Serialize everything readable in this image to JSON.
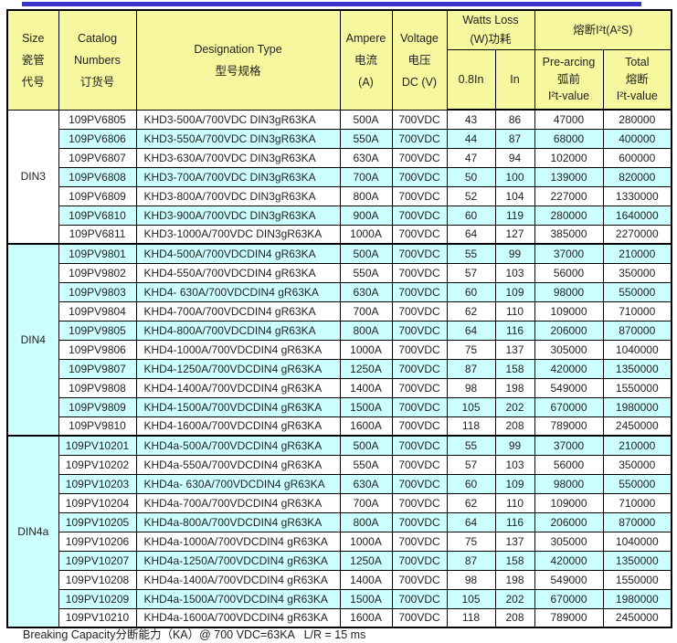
{
  "page": {
    "footer_note": "Breaking Capacity分断能力（KA）@ 700 VDC=63KA   L/R = 15 ms"
  },
  "colors": {
    "top_rule": "#3a35c8",
    "header_bg": "#f7f7a0",
    "stripe_bg": "#ccffff",
    "row_bg": "#ffffff",
    "border": "#000000",
    "text": "#1f1f1f"
  },
  "table": {
    "header": {
      "size": "Size\n瓷管\n代号",
      "catalog": "Catalog\nNumbers\n订货号",
      "designation": "Designation Type\n型号规格",
      "ampere": "Ampere\n电流\n(A)",
      "voltage": "Voltage\n电压\nDC (V)",
      "watts_loss": "Watts Loss\n(W)功耗",
      "i2t": "熔断I²t(A²S)",
      "watts_08in": "0.8In",
      "watts_in": "In",
      "prearcing": "Pre-arcing\n弧前\nI²t-value",
      "total": "Total\n熔断\nI²t-value"
    },
    "groups": [
      {
        "size": "DIN3",
        "rows": [
          {
            "catalog": "109PV6805",
            "designation": "KHD3-500A/700VDC DIN3gR63KA",
            "ampere": "500A",
            "voltage": "700VDC",
            "watts_08in": "43",
            "watts_in": "86",
            "prearcing": "47000",
            "total": "280000"
          },
          {
            "catalog": "109PV6806",
            "designation": "KHD3-550A/700VDC DIN3gR63KA",
            "ampere": "550A",
            "voltage": "700VDC",
            "watts_08in": "44",
            "watts_in": "87",
            "prearcing": "68000",
            "total": "400000"
          },
          {
            "catalog": "109PV6807",
            "designation": "KHD3-630A/700VDC DIN3gR63KA",
            "ampere": "630A",
            "voltage": "700VDC",
            "watts_08in": "47",
            "watts_in": "94",
            "prearcing": "102000",
            "total": "600000"
          },
          {
            "catalog": "109PV6808",
            "designation": "KHD3-700A/700VDC DIN3gR63KA",
            "ampere": "700A",
            "voltage": "700VDC",
            "watts_08in": "50",
            "watts_in": "100",
            "prearcing": "139000",
            "total": "820000"
          },
          {
            "catalog": "109PV6809",
            "designation": "KHD3-800A/700VDC DIN3gR63KA",
            "ampere": "800A",
            "voltage": "700VDC",
            "watts_08in": "52",
            "watts_in": "104",
            "prearcing": "227000",
            "total": "1330000"
          },
          {
            "catalog": "109PV6810",
            "designation": "KHD3-900A/700VDC DIN3gR63KA",
            "ampere": "900A",
            "voltage": "700VDC",
            "watts_08in": "60",
            "watts_in": "119",
            "prearcing": "280000",
            "total": "1640000"
          },
          {
            "catalog": "109PV6811",
            "designation": "KHD3-1000A/700VDC DIN3gR63KA",
            "ampere": "1000A",
            "voltage": "700VDC",
            "watts_08in": "64",
            "watts_in": "127",
            "prearcing": "385000",
            "total": "2270000"
          }
        ]
      },
      {
        "size": "DIN4",
        "rows": [
          {
            "catalog": "109PV9801",
            "designation": "KHD4-500A/700VDCDIN4 gR63KA",
            "ampere": "500A",
            "voltage": "700VDC",
            "watts_08in": "55",
            "watts_in": "99",
            "prearcing": "37000",
            "total": "210000"
          },
          {
            "catalog": "109PV9802",
            "designation": "KHD4-550A/700VDCDIN4 gR63KA",
            "ampere": "550A",
            "voltage": "700VDC",
            "watts_08in": "57",
            "watts_in": "103",
            "prearcing": "56000",
            "total": "350000"
          },
          {
            "catalog": "109PV9803",
            "designation": "KHD4- 630A/700VDCDIN4 gR63KA",
            "ampere": "630A",
            "voltage": "700VDC",
            "watts_08in": "60",
            "watts_in": "109",
            "prearcing": "98000",
            "total": "550000"
          },
          {
            "catalog": "109PV9804",
            "designation": "KHD4-700A/700VDCDIN4 gR63KA",
            "ampere": "700A",
            "voltage": "700VDC",
            "watts_08in": "62",
            "watts_in": "110",
            "prearcing": "109000",
            "total": "710000"
          },
          {
            "catalog": "109PV9805",
            "designation": "KHD4-800A/700VDCDIN4 gR63KA",
            "ampere": "800A",
            "voltage": "700VDC",
            "watts_08in": "64",
            "watts_in": "116",
            "prearcing": "206000",
            "total": "870000"
          },
          {
            "catalog": "109PV9806",
            "designation": "KHD4-1000A/700VDCDIN4 gR63KA",
            "ampere": "1000A",
            "voltage": "700VDC",
            "watts_08in": "75",
            "watts_in": "137",
            "prearcing": "305000",
            "total": "1040000"
          },
          {
            "catalog": "109PV9807",
            "designation": "KHD4-1250A/700VDCDIN4 gR63KA",
            "ampere": "1250A",
            "voltage": "700VDC",
            "watts_08in": "87",
            "watts_in": "158",
            "prearcing": "420000",
            "total": "1350000"
          },
          {
            "catalog": "109PV9808",
            "designation": "KHD4-1400A/700VDCDIN4 gR63KA",
            "ampere": "1400A",
            "voltage": "700VDC",
            "watts_08in": "98",
            "watts_in": "198",
            "prearcing": "549000",
            "total": "1550000"
          },
          {
            "catalog": "109PV9809",
            "designation": "KHD4-1500A/700VDCDIN4 gR63KA",
            "ampere": "1500A",
            "voltage": "700VDC",
            "watts_08in": "105",
            "watts_in": "202",
            "prearcing": "670000",
            "total": "1980000"
          },
          {
            "catalog": "109PV9810",
            "designation": "KHD4-1600A/700VDCDIN4 gR63KA",
            "ampere": "1600A",
            "voltage": "700VDC",
            "watts_08in": "118",
            "watts_in": "208",
            "prearcing": "789000",
            "total": "2450000"
          }
        ]
      },
      {
        "size": "DIN4a",
        "rows": [
          {
            "catalog": "109PV10201",
            "designation": "KHD4a-500A/700VDCDIN4 gR63KA",
            "ampere": "500A",
            "voltage": "700VDC",
            "watts_08in": "55",
            "watts_in": "99",
            "prearcing": "37000",
            "total": "210000"
          },
          {
            "catalog": "109PV10202",
            "designation": "KHD4a-550A/700VDCDIN4 gR63KA",
            "ampere": "550A",
            "voltage": "700VDC",
            "watts_08in": "57",
            "watts_in": "103",
            "prearcing": "56000",
            "total": "350000"
          },
          {
            "catalog": "109PV10203",
            "designation": "KHD4a- 630A/700VDCDIN4 gR63KA",
            "ampere": "630A",
            "voltage": "700VDC",
            "watts_08in": "60",
            "watts_in": "109",
            "prearcing": "98000",
            "total": "550000"
          },
          {
            "catalog": "109PV10204",
            "designation": "KHD4a-700A/700VDCDIN4 gR63KA",
            "ampere": "700A",
            "voltage": "700VDC",
            "watts_08in": "62",
            "watts_in": "110",
            "prearcing": "109000",
            "total": "710000"
          },
          {
            "catalog": "109PV10205",
            "designation": "KHD4a-800A/700VDCDIN4 gR63KA",
            "ampere": "800A",
            "voltage": "700VDC",
            "watts_08in": "64",
            "watts_in": "116",
            "prearcing": "206000",
            "total": "870000"
          },
          {
            "catalog": "109PV10206",
            "designation": "KHD4a-1000A/700VDCDIN4 gR63KA",
            "ampere": "1000A",
            "voltage": "700VDC",
            "watts_08in": "75",
            "watts_in": "137",
            "prearcing": "305000",
            "total": "1040000"
          },
          {
            "catalog": "109PV10207",
            "designation": "KHD4a-1250A/700VDCDIN4 gR63KA",
            "ampere": "1250A",
            "voltage": "700VDC",
            "watts_08in": "87",
            "watts_in": "158",
            "prearcing": "420000",
            "total": "1350000"
          },
          {
            "catalog": "109PV10208",
            "designation": "KHD4a-1400A/700VDCDIN4 gR63KA",
            "ampere": "1400A",
            "voltage": "700VDC",
            "watts_08in": "98",
            "watts_in": "198",
            "prearcing": "549000",
            "total": "1550000"
          },
          {
            "catalog": "109PV10209",
            "designation": "KHD4a-1500A/700VDCDIN4 gR63KA",
            "ampere": "1500A",
            "voltage": "700VDC",
            "watts_08in": "105",
            "watts_in": "202",
            "prearcing": "670000",
            "total": "1980000"
          },
          {
            "catalog": "109PV10210",
            "designation": "KHD4a-1600A/700VDCDIN4 gR63KA",
            "ampere": "1600A",
            "voltage": "700VDC",
            "watts_08in": "118",
            "watts_in": "208",
            "prearcing": "789000",
            "total": "2450000"
          }
        ]
      }
    ]
  }
}
